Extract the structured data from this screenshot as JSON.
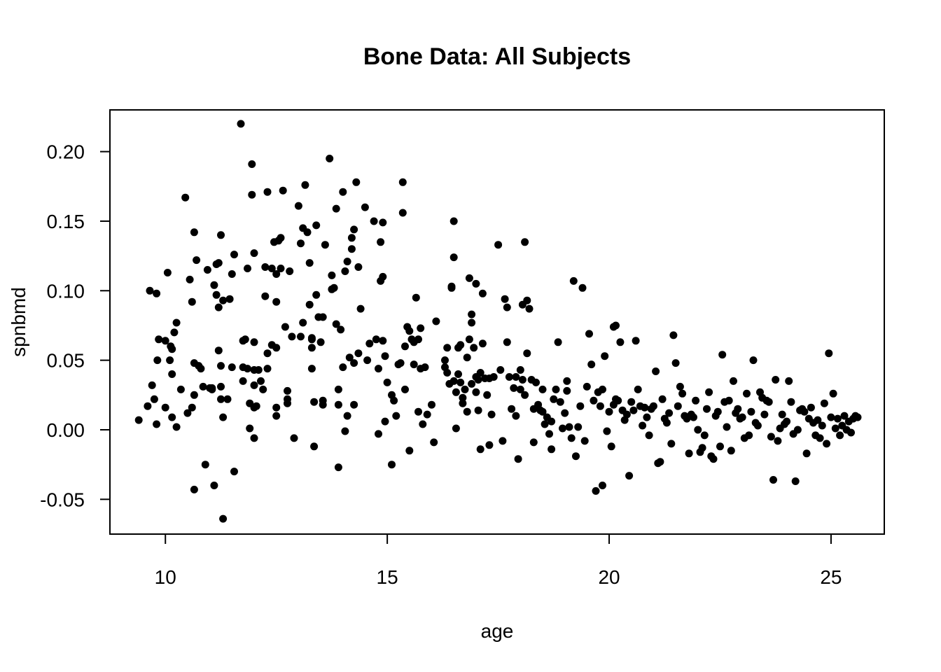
{
  "chart_data": {
    "type": "scatter",
    "title": "Bone Data: All Subjects",
    "xlabel": "age",
    "ylabel": "spnbmd",
    "xlim": [
      8.75,
      26.2
    ],
    "ylim": [
      -0.075,
      0.23
    ],
    "xticks": [
      {
        "value": 10,
        "label": "10"
      },
      {
        "value": 15,
        "label": "15"
      },
      {
        "value": 20,
        "label": "20"
      },
      {
        "value": 25,
        "label": "25"
      }
    ],
    "yticks": [
      {
        "value": -0.05,
        "label": "-0.05"
      },
      {
        "value": 0.0,
        "label": "0.00"
      },
      {
        "value": 0.05,
        "label": "0.05"
      },
      {
        "value": 0.1,
        "label": "0.10"
      },
      {
        "value": 0.15,
        "label": "0.15"
      },
      {
        "value": 0.2,
        "label": "0.20"
      }
    ],
    "grid": false,
    "legend": "none",
    "point_color": "#000000",
    "points": [
      [
        9.4,
        0.007
      ],
      [
        9.6,
        0.017
      ],
      [
        9.65,
        0.1
      ],
      [
        9.7,
        0.032
      ],
      [
        9.75,
        0.022
      ],
      [
        9.8,
        0.098
      ],
      [
        9.8,
        0.004
      ],
      [
        9.82,
        0.05
      ],
      [
        9.85,
        0.065
      ],
      [
        10.0,
        0.016
      ],
      [
        10.0,
        0.064
      ],
      [
        10.05,
        0.113
      ],
      [
        10.1,
        0.05
      ],
      [
        10.12,
        0.06
      ],
      [
        10.15,
        0.058
      ],
      [
        10.15,
        0.04
      ],
      [
        10.15,
        0.009
      ],
      [
        10.2,
        0.07
      ],
      [
        10.25,
        0.077
      ],
      [
        10.25,
        0.002
      ],
      [
        10.35,
        0.029
      ],
      [
        10.45,
        0.167
      ],
      [
        10.5,
        0.012
      ],
      [
        10.55,
        0.108
      ],
      [
        10.6,
        0.016
      ],
      [
        10.6,
        0.092
      ],
      [
        10.65,
        0.142
      ],
      [
        10.65,
        0.048
      ],
      [
        10.65,
        0.025
      ],
      [
        10.65,
        -0.043
      ],
      [
        10.7,
        0.122
      ],
      [
        10.75,
        0.046
      ],
      [
        10.8,
        0.044
      ],
      [
        10.85,
        0.031
      ],
      [
        10.9,
        -0.025
      ],
      [
        10.95,
        0.115
      ],
      [
        11.0,
        0.03
      ],
      [
        11.05,
        0.03
      ],
      [
        11.05,
        0.029
      ],
      [
        11.1,
        0.104
      ],
      [
        11.1,
        -0.04
      ],
      [
        11.15,
        0.119
      ],
      [
        11.15,
        0.097
      ],
      [
        11.2,
        0.088
      ],
      [
        11.2,
        0.12
      ],
      [
        11.2,
        0.057
      ],
      [
        11.25,
        0.046
      ],
      [
        11.25,
        0.031
      ],
      [
        11.25,
        0.022
      ],
      [
        11.25,
        0.14
      ],
      [
        11.3,
        0.093
      ],
      [
        11.3,
        0.009
      ],
      [
        11.3,
        -0.064
      ],
      [
        11.4,
        0.022
      ],
      [
        11.45,
        0.094
      ],
      [
        11.5,
        0.112
      ],
      [
        11.5,
        0.045
      ],
      [
        11.55,
        0.126
      ],
      [
        11.55,
        -0.03
      ],
      [
        11.7,
        0.22
      ],
      [
        11.75,
        0.064
      ],
      [
        11.75,
        0.045
      ],
      [
        11.75,
        0.035
      ],
      [
        11.8,
        0.065
      ],
      [
        11.85,
        0.116
      ],
      [
        11.85,
        0.044
      ],
      [
        11.9,
        0.019
      ],
      [
        11.9,
        0.001
      ],
      [
        11.95,
        0.169
      ],
      [
        11.95,
        0.191
      ],
      [
        12.0,
        0.127
      ],
      [
        12.0,
        0.063
      ],
      [
        12.0,
        0.043
      ],
      [
        12.0,
        0.032
      ],
      [
        12.0,
        0.016
      ],
      [
        12.0,
        -0.006
      ],
      [
        12.05,
        0.017
      ],
      [
        12.1,
        0.043
      ],
      [
        12.15,
        0.035
      ],
      [
        12.2,
        0.029
      ],
      [
        12.25,
        0.096
      ],
      [
        12.25,
        0.117
      ],
      [
        12.3,
        0.171
      ],
      [
        12.3,
        0.055
      ],
      [
        12.3,
        0.044
      ],
      [
        12.4,
        0.116
      ],
      [
        12.4,
        0.061
      ],
      [
        12.45,
        0.135
      ],
      [
        12.5,
        0.112
      ],
      [
        12.5,
        0.092
      ],
      [
        12.5,
        0.059
      ],
      [
        12.5,
        0.016
      ],
      [
        12.5,
        0.01
      ],
      [
        12.55,
        0.136
      ],
      [
        12.6,
        0.138
      ],
      [
        12.6,
        0.116
      ],
      [
        12.65,
        0.172
      ],
      [
        12.7,
        0.074
      ],
      [
        12.75,
        0.028
      ],
      [
        12.75,
        0.022
      ],
      [
        12.75,
        0.019
      ],
      [
        12.8,
        0.114
      ],
      [
        12.85,
        0.067
      ],
      [
        12.9,
        -0.006
      ],
      [
        13.0,
        0.161
      ],
      [
        13.05,
        0.134
      ],
      [
        13.05,
        0.067
      ],
      [
        13.1,
        0.145
      ],
      [
        13.1,
        0.077
      ],
      [
        13.15,
        0.176
      ],
      [
        13.2,
        0.142
      ],
      [
        13.25,
        0.12
      ],
      [
        13.25,
        0.09
      ],
      [
        13.3,
        0.066
      ],
      [
        13.3,
        0.059
      ],
      [
        13.3,
        0.065
      ],
      [
        13.3,
        0.044
      ],
      [
        13.35,
        -0.012
      ],
      [
        13.35,
        0.02
      ],
      [
        13.4,
        0.147
      ],
      [
        13.4,
        0.097
      ],
      [
        13.45,
        0.081
      ],
      [
        13.5,
        0.063
      ],
      [
        13.55,
        0.021
      ],
      [
        13.55,
        0.081
      ],
      [
        13.55,
        0.018
      ],
      [
        13.6,
        0.133
      ],
      [
        13.7,
        0.195
      ],
      [
        13.75,
        0.111
      ],
      [
        13.75,
        0.101
      ],
      [
        13.8,
        0.102
      ],
      [
        13.85,
        0.159
      ],
      [
        13.85,
        0.076
      ],
      [
        13.9,
        -0.027
      ],
      [
        13.9,
        0.018
      ],
      [
        13.9,
        0.029
      ],
      [
        13.95,
        0.072
      ],
      [
        14.0,
        0.171
      ],
      [
        14.0,
        0.045
      ],
      [
        14.05,
        0.114
      ],
      [
        14.05,
        -0.001
      ],
      [
        14.1,
        0.121
      ],
      [
        14.1,
        0.01
      ],
      [
        14.15,
        0.052
      ],
      [
        14.2,
        0.138
      ],
      [
        14.2,
        0.13
      ],
      [
        14.25,
        0.144
      ],
      [
        14.25,
        0.048
      ],
      [
        14.25,
        0.018
      ],
      [
        14.3,
        0.178
      ],
      [
        14.35,
        0.117
      ],
      [
        14.35,
        0.055
      ],
      [
        14.4,
        0.087
      ],
      [
        14.5,
        0.16
      ],
      [
        14.55,
        0.05
      ],
      [
        14.6,
        0.062
      ],
      [
        14.7,
        0.15
      ],
      [
        14.75,
        0.065
      ],
      [
        14.8,
        0.044
      ],
      [
        14.8,
        -0.003
      ],
      [
        14.85,
        0.135
      ],
      [
        14.85,
        0.107
      ],
      [
        14.9,
        0.149
      ],
      [
        14.9,
        0.11
      ],
      [
        14.9,
        0.064
      ],
      [
        14.95,
        0.053
      ],
      [
        14.95,
        0.006
      ],
      [
        15.0,
        0.034
      ],
      [
        15.1,
        0.025
      ],
      [
        15.1,
        -0.025
      ],
      [
        15.15,
        0.021
      ],
      [
        15.2,
        0.01
      ],
      [
        15.25,
        0.047
      ],
      [
        15.3,
        0.048
      ],
      [
        15.35,
        0.178
      ],
      [
        15.35,
        0.156
      ],
      [
        15.4,
        0.029
      ],
      [
        15.4,
        0.06
      ],
      [
        15.45,
        0.074
      ],
      [
        15.5,
        0.071
      ],
      [
        15.5,
        -0.015
      ],
      [
        15.55,
        0.065
      ],
      [
        15.6,
        0.063
      ],
      [
        15.6,
        0.047
      ],
      [
        15.65,
        0.095
      ],
      [
        15.7,
        0.013
      ],
      [
        15.7,
        0.065
      ],
      [
        15.75,
        0.044
      ],
      [
        15.75,
        0.073
      ],
      [
        15.8,
        0.004
      ],
      [
        15.85,
        0.045
      ],
      [
        15.9,
        0.011
      ],
      [
        16.0,
        0.018
      ],
      [
        16.05,
        -0.009
      ],
      [
        16.1,
        0.078
      ],
      [
        16.3,
        0.05
      ],
      [
        16.3,
        0.045
      ],
      [
        16.35,
        0.059
      ],
      [
        16.35,
        0.041
      ],
      [
        16.4,
        0.033
      ],
      [
        16.45,
        0.102
      ],
      [
        16.45,
        0.103
      ],
      [
        16.5,
        0.15
      ],
      [
        16.5,
        0.124
      ],
      [
        16.5,
        0.035
      ],
      [
        16.55,
        0.027
      ],
      [
        16.55,
        0.001
      ],
      [
        16.6,
        0.059
      ],
      [
        16.6,
        0.04
      ],
      [
        16.65,
        0.061
      ],
      [
        16.65,
        0.034
      ],
      [
        16.7,
        0.023
      ],
      [
        16.7,
        0.019
      ],
      [
        16.75,
        0.029
      ],
      [
        16.8,
        0.052
      ],
      [
        16.8,
        0.013
      ],
      [
        16.85,
        0.109
      ],
      [
        16.85,
        0.065
      ],
      [
        16.9,
        0.083
      ],
      [
        16.9,
        0.077
      ],
      [
        16.9,
        0.033
      ],
      [
        16.95,
        0.059
      ],
      [
        17.0,
        0.105
      ],
      [
        17.0,
        0.038
      ],
      [
        17.0,
        0.027
      ],
      [
        17.05,
        0.036
      ],
      [
        17.05,
        0.014
      ],
      [
        17.1,
        0.041
      ],
      [
        17.1,
        -0.014
      ],
      [
        17.15,
        0.098
      ],
      [
        17.15,
        0.062
      ],
      [
        17.2,
        0.037
      ],
      [
        17.25,
        0.025
      ],
      [
        17.3,
        -0.011
      ],
      [
        17.3,
        0.037
      ],
      [
        17.35,
        0.011
      ],
      [
        17.4,
        0.038
      ],
      [
        17.5,
        0.133
      ],
      [
        17.55,
        0.043
      ],
      [
        17.6,
        -0.008
      ],
      [
        17.65,
        0.094
      ],
      [
        17.7,
        0.088
      ],
      [
        17.7,
        0.063
      ],
      [
        17.75,
        0.038
      ],
      [
        17.8,
        0.015
      ],
      [
        17.85,
        0.03
      ],
      [
        17.9,
        0.038
      ],
      [
        17.9,
        0.01
      ],
      [
        17.95,
        -0.021
      ],
      [
        18.0,
        0.043
      ],
      [
        18.0,
        0.029
      ],
      [
        18.05,
        0.036
      ],
      [
        18.05,
        0.09
      ],
      [
        18.1,
        0.135
      ],
      [
        18.1,
        0.025
      ],
      [
        18.15,
        0.093
      ],
      [
        18.15,
        0.055
      ],
      [
        18.2,
        0.087
      ],
      [
        18.25,
        0.036
      ],
      [
        18.3,
        0.015
      ],
      [
        18.3,
        -0.009
      ],
      [
        18.35,
        0.034
      ],
      [
        18.4,
        0.018
      ],
      [
        18.45,
        0.014
      ],
      [
        18.5,
        0.029
      ],
      [
        18.5,
        0.013
      ],
      [
        18.55,
        0.004
      ],
      [
        18.6,
        0.009
      ],
      [
        18.65,
        -0.003
      ],
      [
        18.7,
        0.006
      ],
      [
        18.7,
        -0.014
      ],
      [
        18.75,
        0.022
      ],
      [
        18.8,
        0.029
      ],
      [
        18.85,
        0.063
      ],
      [
        18.9,
        0.02
      ],
      [
        18.95,
        0.001
      ],
      [
        19.0,
        0.012
      ],
      [
        19.05,
        0.035
      ],
      [
        19.05,
        0.028
      ],
      [
        19.1,
        0.002
      ],
      [
        19.15,
        -0.006
      ],
      [
        19.2,
        0.107
      ],
      [
        19.25,
        -0.019
      ],
      [
        19.3,
        0.002
      ],
      [
        19.35,
        0.017
      ],
      [
        19.4,
        0.102
      ],
      [
        19.45,
        -0.008
      ],
      [
        19.5,
        0.031
      ],
      [
        19.55,
        0.069
      ],
      [
        19.6,
        0.047
      ],
      [
        19.65,
        0.021
      ],
      [
        19.7,
        -0.044
      ],
      [
        19.75,
        0.027
      ],
      [
        19.8,
        0.017
      ],
      [
        19.85,
        0.029
      ],
      [
        19.85,
        -0.04
      ],
      [
        19.9,
        0.053
      ],
      [
        19.95,
        -0.001
      ],
      [
        20.0,
        0.013
      ],
      [
        20.05,
        -0.012
      ],
      [
        20.1,
        0.074
      ],
      [
        20.1,
        0.018
      ],
      [
        20.15,
        0.075
      ],
      [
        20.15,
        0.022
      ],
      [
        20.2,
        0.021
      ],
      [
        20.25,
        0.063
      ],
      [
        20.3,
        0.014
      ],
      [
        20.35,
        0.007
      ],
      [
        20.4,
        0.011
      ],
      [
        20.45,
        -0.033
      ],
      [
        20.5,
        0.02
      ],
      [
        20.55,
        0.014
      ],
      [
        20.6,
        0.064
      ],
      [
        20.65,
        0.029
      ],
      [
        20.7,
        0.017
      ],
      [
        20.75,
        0.003
      ],
      [
        20.8,
        0.016
      ],
      [
        20.85,
        0.009
      ],
      [
        20.9,
        -0.004
      ],
      [
        20.95,
        0.015
      ],
      [
        21.0,
        0.017
      ],
      [
        21.05,
        0.042
      ],
      [
        21.1,
        -0.024
      ],
      [
        21.15,
        -0.023
      ],
      [
        21.2,
        0.022
      ],
      [
        21.25,
        0.008
      ],
      [
        21.3,
        0.005
      ],
      [
        21.35,
        0.012
      ],
      [
        21.4,
        -0.01
      ],
      [
        21.45,
        0.068
      ],
      [
        21.5,
        0.048
      ],
      [
        21.55,
        0.017
      ],
      [
        21.6,
        0.031
      ],
      [
        21.65,
        0.026
      ],
      [
        21.7,
        0.01
      ],
      [
        21.75,
        0.008
      ],
      [
        21.8,
        -0.017
      ],
      [
        21.85,
        0.011
      ],
      [
        21.9,
        0.009
      ],
      [
        21.95,
        0.021
      ],
      [
        22.0,
        0.0
      ],
      [
        22.05,
        -0.016
      ],
      [
        22.1,
        -0.013
      ],
      [
        22.15,
        -0.004
      ],
      [
        22.2,
        0.015
      ],
      [
        22.25,
        0.027
      ],
      [
        22.3,
        -0.019
      ],
      [
        22.35,
        -0.021
      ],
      [
        22.4,
        0.01
      ],
      [
        22.45,
        0.013
      ],
      [
        22.5,
        -0.012
      ],
      [
        22.55,
        0.054
      ],
      [
        22.6,
        0.02
      ],
      [
        22.65,
        0.002
      ],
      [
        22.7,
        0.021
      ],
      [
        22.75,
        -0.015
      ],
      [
        22.8,
        0.035
      ],
      [
        22.85,
        0.012
      ],
      [
        22.9,
        0.015
      ],
      [
        22.95,
        0.008
      ],
      [
        23.0,
        0.009
      ],
      [
        23.05,
        -0.006
      ],
      [
        23.1,
        0.026
      ],
      [
        23.15,
        -0.004
      ],
      [
        23.2,
        0.013
      ],
      [
        23.25,
        0.05
      ],
      [
        23.3,
        0.005
      ],
      [
        23.35,
        0.003
      ],
      [
        23.4,
        0.027
      ],
      [
        23.45,
        0.023
      ],
      [
        23.5,
        0.011
      ],
      [
        23.55,
        0.021
      ],
      [
        23.6,
        0.02
      ],
      [
        23.65,
        -0.005
      ],
      [
        23.7,
        -0.036
      ],
      [
        23.75,
        0.036
      ],
      [
        23.8,
        -0.008
      ],
      [
        23.85,
        0.001
      ],
      [
        23.9,
        0.011
      ],
      [
        23.95,
        0.004
      ],
      [
        24.0,
        0.006
      ],
      [
        24.05,
        0.035
      ],
      [
        24.1,
        0.02
      ],
      [
        24.15,
        -0.003
      ],
      [
        24.2,
        -0.037
      ],
      [
        24.25,
        0.0
      ],
      [
        24.3,
        0.014
      ],
      [
        24.35,
        0.015
      ],
      [
        24.4,
        0.013
      ],
      [
        24.45,
        -0.017
      ],
      [
        24.5,
        0.008
      ],
      [
        24.55,
        0.016
      ],
      [
        24.6,
        0.005
      ],
      [
        24.65,
        -0.004
      ],
      [
        24.7,
        0.007
      ],
      [
        24.75,
        -0.006
      ],
      [
        24.8,
        0.003
      ],
      [
        24.85,
        0.019
      ],
      [
        24.9,
        -0.01
      ],
      [
        24.95,
        0.055
      ],
      [
        25.0,
        0.009
      ],
      [
        25.05,
        0.026
      ],
      [
        25.1,
        0.001
      ],
      [
        25.15,
        0.008
      ],
      [
        25.2,
        -0.004
      ],
      [
        25.25,
        0.003
      ],
      [
        25.3,
        0.01
      ],
      [
        25.35,
        0.0
      ],
      [
        25.4,
        0.006
      ],
      [
        25.45,
        -0.002
      ],
      [
        25.5,
        0.008
      ],
      [
        25.55,
        0.01
      ],
      [
        25.6,
        0.009
      ]
    ]
  }
}
